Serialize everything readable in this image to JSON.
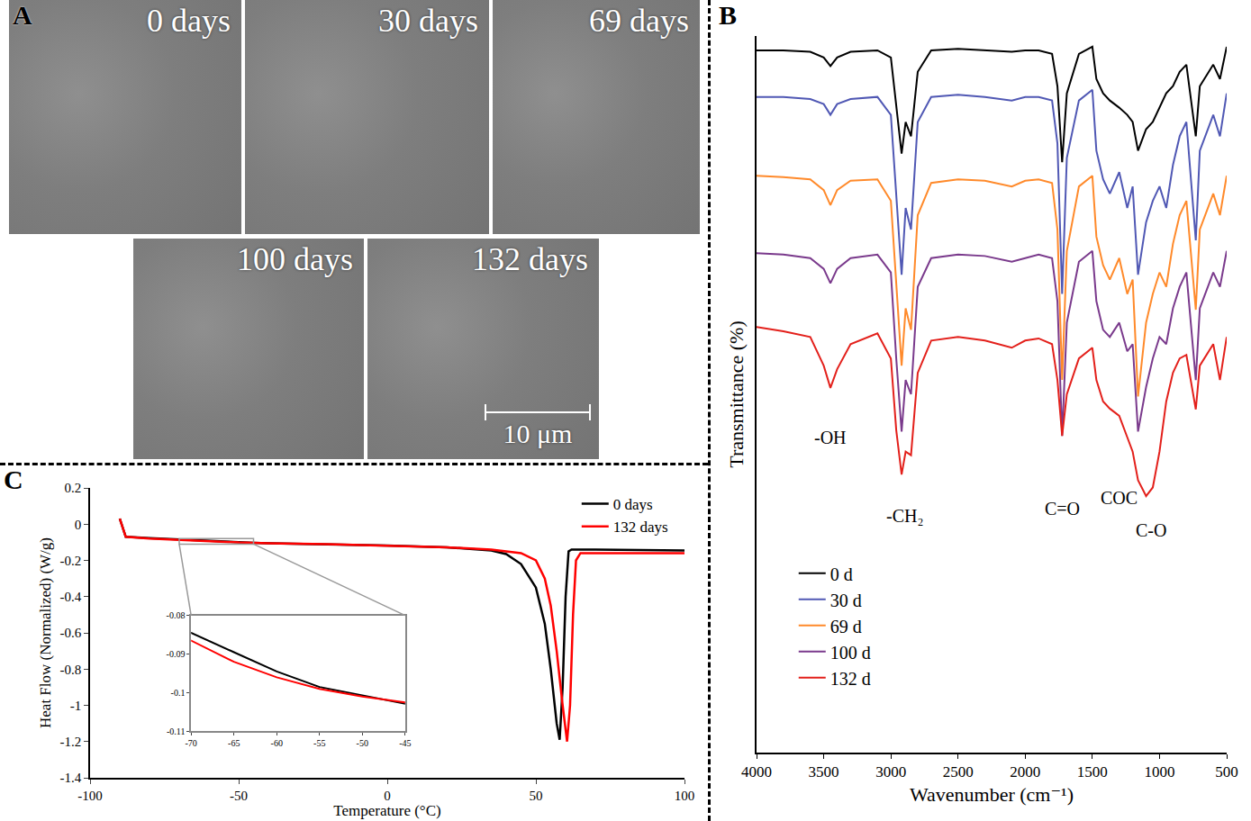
{
  "panel_a": {
    "letter": "A",
    "images": [
      "0 days",
      "30 days",
      "69 days",
      "100 days",
      "132 days"
    ],
    "scale_bar": "10 μm"
  },
  "chart_data": [
    {
      "type": "line",
      "title": "B",
      "x_label": "Wavenumber (cm⁻¹)",
      "y_label": "Transmittance (%)",
      "x": [
        4000,
        3800,
        3600,
        3500,
        3450,
        3400,
        3300,
        3100,
        3000,
        2960,
        2920,
        2890,
        2850,
        2800,
        2700,
        2500,
        2300,
        2100,
        2000,
        1900,
        1800,
        1760,
        1725,
        1690,
        1600,
        1500,
        1470,
        1420,
        1370,
        1300,
        1240,
        1200,
        1160,
        1100,
        1050,
        1000,
        950,
        900,
        850,
        800,
        730,
        700,
        600,
        550,
        500
      ],
      "series": [
        {
          "name": "0 d",
          "color": "#000000",
          "values": [
            98,
            98,
            97.8,
            97,
            95.8,
            97,
            97.8,
            98,
            97,
            90,
            83.6,
            88,
            86,
            95,
            98,
            98.2,
            98,
            97.8,
            98,
            98,
            97.5,
            93,
            82.4,
            92,
            97.5,
            98.5,
            94,
            92,
            91,
            90,
            89,
            88,
            84,
            87,
            88,
            90,
            92,
            93,
            95,
            96,
            86,
            93,
            96,
            94,
            98.5
          ]
        },
        {
          "name": "30 d",
          "color": "#5058b4",
          "values": [
            91.5,
            91.5,
            91.2,
            90.5,
            89,
            90.5,
            91.2,
            91.5,
            89,
            78,
            66.7,
            76,
            73,
            88,
            91.5,
            91.8,
            91.5,
            91,
            91.5,
            91.5,
            91,
            85,
            64,
            83,
            91,
            92.5,
            84,
            80,
            78,
            81,
            76,
            79,
            66.7,
            74,
            77,
            79,
            76,
            82,
            86,
            88,
            71.5,
            84,
            89,
            86,
            92
          ]
        },
        {
          "name": "69 d",
          "color": "#ff8a2b",
          "values": [
            80.5,
            80.3,
            80,
            78.5,
            76.4,
            78.5,
            79.8,
            80,
            77,
            65,
            54,
            62,
            59,
            75,
            79.5,
            80,
            79.8,
            79,
            79.8,
            80,
            79.5,
            73,
            52,
            70,
            79,
            80.5,
            72,
            68,
            66,
            69,
            64,
            66,
            49.7,
            60,
            64,
            67,
            65,
            71,
            75,
            77,
            61.8,
            73,
            78,
            75,
            80.5
          ]
        },
        {
          "name": "100 d",
          "color": "#7a3a8c",
          "values": [
            69.7,
            69.5,
            69,
            67.5,
            65.5,
            67.5,
            69,
            69.5,
            67,
            55,
            44.8,
            52,
            50,
            65,
            69,
            69.5,
            69.3,
            68.5,
            69,
            69.5,
            69,
            63,
            44.2,
            60,
            68.5,
            70,
            63,
            59,
            58,
            60,
            56,
            57,
            44.8,
            51,
            55,
            58,
            57,
            62,
            65,
            67,
            52,
            62,
            67,
            65,
            70
          ]
        },
        {
          "name": "132 d",
          "color": "#e3201b",
          "values": [
            59.4,
            58.8,
            58,
            54,
            50.9,
            53.5,
            57,
            58.5,
            55,
            45,
            38.8,
            42,
            41.5,
            53,
            57.5,
            58,
            57.5,
            56.5,
            57.5,
            57.8,
            57,
            52,
            44.2,
            50,
            55,
            56.5,
            52,
            49,
            48,
            47,
            44,
            42,
            38,
            35.8,
            37,
            42,
            49,
            53,
            55,
            55.5,
            47.9,
            54,
            57,
            52,
            58
          ]
        }
      ],
      "xlim": [
        4000,
        500
      ],
      "xticks": [
        4000,
        3500,
        3000,
        2500,
        2000,
        1500,
        1000,
        500
      ],
      "ylim": [
        0,
        100
      ],
      "tick_labels": "x",
      "grid": false,
      "legend": "lower left",
      "annotations": [
        {
          "text": "-OH",
          "x": 3450,
          "y": 44
        },
        {
          "text": "-CH₂",
          "x": 2900,
          "y": 33
        },
        {
          "text": "C=O",
          "x": 1725,
          "y": 34
        },
        {
          "text": "COC",
          "x": 1300,
          "y": 35.5
        },
        {
          "text": "C-O",
          "x": 1060,
          "y": 31
        }
      ]
    },
    {
      "type": "line",
      "title": "C",
      "x_label": "Temperature (°C)",
      "y_label": "Heat Flow (Normalized) (W/g)",
      "series": [
        {
          "name": "0 days",
          "color": "#000000",
          "x": [
            -90,
            -88,
            -80,
            -70,
            -65,
            -60,
            -55,
            -50,
            -45,
            -40,
            -20,
            0,
            20,
            35,
            40,
            45,
            50,
            53,
            55,
            57,
            58,
            59,
            60,
            61,
            62,
            70,
            100
          ],
          "values": [
            0.03,
            -0.07,
            -0.077,
            -0.0845,
            -0.0895,
            -0.0945,
            -0.0985,
            -0.1005,
            -0.1025,
            -0.105,
            -0.11,
            -0.118,
            -0.128,
            -0.145,
            -0.165,
            -0.22,
            -0.35,
            -0.55,
            -0.8,
            -1.1,
            -1.19,
            -0.9,
            -0.4,
            -0.15,
            -0.14,
            -0.14,
            -0.145
          ]
        },
        {
          "name": "132 days",
          "color": "#ff0000",
          "x": [
            -90,
            -88,
            -80,
            -70,
            -65,
            -60,
            -55,
            -50,
            -45,
            -40,
            -20,
            0,
            20,
            35,
            45,
            50,
            53,
            55,
            57,
            59,
            60.5,
            61.5,
            62.5,
            63.5,
            65,
            70,
            100
          ],
          "values": [
            0.03,
            -0.07,
            -0.079,
            -0.0865,
            -0.092,
            -0.096,
            -0.099,
            -0.101,
            -0.1025,
            -0.105,
            -0.11,
            -0.118,
            -0.128,
            -0.14,
            -0.16,
            -0.2,
            -0.3,
            -0.45,
            -0.7,
            -1.0,
            -1.2,
            -1.0,
            -0.5,
            -0.2,
            -0.16,
            -0.16,
            -0.16
          ]
        }
      ],
      "xlim": [
        -100,
        100
      ],
      "xticks": [
        -100,
        -50,
        0,
        50,
        100
      ],
      "ylim": [
        -1.4,
        0.2
      ],
      "yticks": [
        -1.4,
        -1.2,
        -1,
        -0.8,
        -0.6,
        -0.4,
        -0.2,
        0,
        0.2
      ],
      "grid": false,
      "legend": "upper right",
      "inset": {
        "xlim": [
          -70,
          -45
        ],
        "xticks": [
          -70,
          -65,
          -60,
          -55,
          -50,
          -45
        ],
        "ylim": [
          -0.11,
          -0.08
        ],
        "yticks": [
          -0.11,
          -0.1,
          -0.09,
          -0.08
        ]
      }
    }
  ]
}
